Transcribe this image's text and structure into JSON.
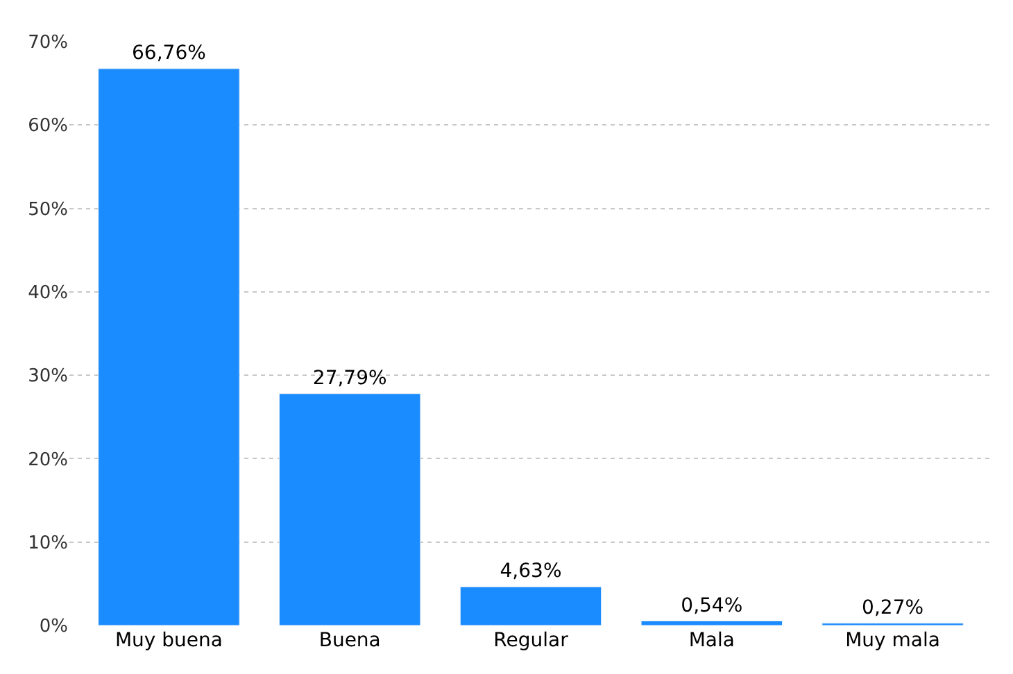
{
  "chart_data": {
    "type": "bar",
    "categories": [
      "Muy buena",
      "Buena",
      "Regular",
      "Mala",
      "Muy mala"
    ],
    "values": [
      66.76,
      27.79,
      4.63,
      0.54,
      0.27
    ],
    "value_labels": [
      "66,76%",
      "27,79%",
      "4,63%",
      "0,54%",
      "0,27%"
    ],
    "color": "#1a8cff",
    "ylim": [
      0,
      70
    ],
    "yticks": [
      {
        "value": 0,
        "label": "0%"
      },
      {
        "value": 10,
        "label": "10%"
      },
      {
        "value": 20,
        "label": "20%"
      },
      {
        "value": 30,
        "label": "30%"
      },
      {
        "value": 40,
        "label": "40%"
      },
      {
        "value": 50,
        "label": "50%"
      },
      {
        "value": 60,
        "label": "60%"
      },
      {
        "value": 70,
        "label": "70%"
      }
    ],
    "grid": "y"
  }
}
